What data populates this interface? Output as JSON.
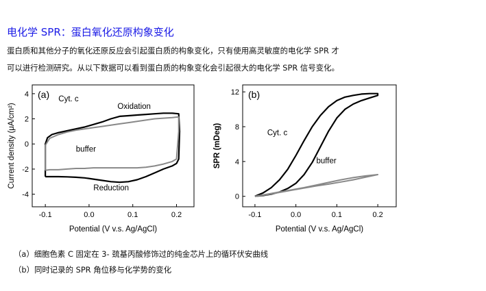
{
  "page": {
    "title": "电化学 SPR：蛋白氧化还原构象变化",
    "paragraph_line1": "蛋白质和其他分子的氧化还原反应会引起蛋白质的构象变化，只有使用高灵敏度的电化学 SPR 才",
    "paragraph_line2": "可以进行检测研究。从以下数据可以看到蛋白质的构象变化会引起很大的电化学 SPR 信号变化。",
    "caption_a": "（a）细胞色素 C 固定在 3- 巯基丙酸修饰过的纯金芯片上的循环伏安曲线",
    "caption_b": "（b）同时记录的 SPR 角位移与化学势的变化"
  },
  "chart_data": [
    {
      "type": "line",
      "panel_label": "(a)",
      "xlabel": "Potential (V v.s. Ag/AgCl)",
      "ylabel": "Current density (μA/cm²)",
      "xlim": [
        -0.13,
        0.24
      ],
      "ylim": [
        -5,
        4.7
      ],
      "xticks": [
        -0.1,
        0.0,
        0.1,
        0.2
      ],
      "xtick_labels": [
        "-0.1",
        "0.0",
        "0.1",
        "0.2"
      ],
      "yticks": [
        -4,
        -2,
        0,
        2,
        4
      ],
      "ytick_labels": [
        "-4",
        "-2",
        "0",
        "2",
        "4"
      ],
      "grid": false,
      "annotations": [
        {
          "text": "Cyt. c",
          "x": -0.07,
          "y": 3.4
        },
        {
          "text": "Oxidation",
          "x": 0.065,
          "y": 2.8
        },
        {
          "text": "buffer",
          "x": -0.03,
          "y": -0.6
        },
        {
          "text": "Reduction",
          "x": 0.01,
          "y": -3.7
        }
      ],
      "series": [
        {
          "color": "#000000",
          "x": [
            -0.1,
            -0.1,
            -0.095,
            -0.085,
            -0.07,
            -0.05,
            -0.03,
            -0.01,
            0.01,
            0.03,
            0.05,
            0.07,
            0.09,
            0.11,
            0.13,
            0.15,
            0.17,
            0.19,
            0.205,
            0.207,
            0.205,
            0.2,
            0.19,
            0.17,
            0.15,
            0.13,
            0.11,
            0.09,
            0.07,
            0.05,
            0.03,
            0.01,
            -0.01,
            -0.03,
            -0.05,
            -0.07,
            -0.09,
            -0.1
          ],
          "y": [
            -2.6,
            0.0,
            0.5,
            0.75,
            0.9,
            1.05,
            1.2,
            1.35,
            1.55,
            1.75,
            2.0,
            2.2,
            2.25,
            2.3,
            2.35,
            2.4,
            2.45,
            2.45,
            2.4,
            1.0,
            -1.2,
            -1.55,
            -1.75,
            -2.0,
            -2.3,
            -2.6,
            -2.85,
            -3.0,
            -3.05,
            -3.0,
            -2.9,
            -2.8,
            -2.7,
            -2.65,
            -2.62,
            -2.6,
            -2.6,
            -2.6
          ]
        },
        {
          "color": "#888888",
          "x": [
            -0.1,
            -0.1,
            -0.09,
            -0.07,
            -0.05,
            -0.03,
            -0.01,
            0.01,
            0.03,
            0.05,
            0.07,
            0.09,
            0.11,
            0.13,
            0.15,
            0.17,
            0.19,
            0.205,
            0.205,
            0.2,
            0.19,
            0.17,
            0.15,
            0.13,
            0.11,
            0.09,
            0.07,
            0.05,
            0.03,
            0.01,
            -0.01,
            -0.03,
            -0.05,
            -0.07,
            -0.09,
            -0.1
          ],
          "y": [
            -2.1,
            -0.1,
            0.45,
            0.75,
            0.95,
            1.1,
            1.2,
            1.3,
            1.4,
            1.5,
            1.6,
            1.7,
            1.8,
            1.9,
            2.0,
            2.05,
            2.1,
            2.15,
            1.0,
            -1.2,
            -1.4,
            -1.6,
            -1.75,
            -1.85,
            -1.9,
            -1.9,
            -1.9,
            -1.9,
            -1.9,
            -1.9,
            -1.95,
            -1.95,
            -2.0,
            -2.05,
            -2.05,
            -2.1
          ]
        }
      ]
    },
    {
      "type": "line",
      "panel_label": "(b)",
      "xlabel": "Potential (V v.s. Ag/AgCl)",
      "ylabel": "SPR (mDeg)",
      "xlim": [
        -0.13,
        0.245
      ],
      "ylim": [
        -1.2,
        12.8
      ],
      "xticks": [
        -0.1,
        0.0,
        0.1,
        0.2
      ],
      "xtick_labels": [
        "-0.1",
        "0.0",
        "0.1",
        "0.2"
      ],
      "yticks": [
        0,
        4,
        8,
        12
      ],
      "ytick_labels": [
        "0",
        "4",
        "8",
        "12"
      ],
      "grid": false,
      "annotations": [
        {
          "text": "Cyt. c",
          "x": -0.07,
          "y": 7.0
        },
        {
          "text": "buffer",
          "x": 0.05,
          "y": 3.8
        }
      ],
      "series": [
        {
          "color": "#000000",
          "x": [
            -0.1,
            -0.08,
            -0.06,
            -0.04,
            -0.02,
            0.0,
            0.02,
            0.04,
            0.06,
            0.08,
            0.1,
            0.12,
            0.14,
            0.16,
            0.18,
            0.2,
            0.2,
            0.18,
            0.16,
            0.14,
            0.12,
            0.1,
            0.08,
            0.06,
            0.04,
            0.02,
            0.0,
            -0.02,
            -0.04,
            -0.06,
            -0.08,
            -0.1
          ],
          "y": [
            0.0,
            0.4,
            1.0,
            1.9,
            3.1,
            4.7,
            6.4,
            8.0,
            9.3,
            10.3,
            11.0,
            11.4,
            11.6,
            11.75,
            11.8,
            11.8,
            11.6,
            11.3,
            11.0,
            10.6,
            10.0,
            9.0,
            7.5,
            5.7,
            3.9,
            2.5,
            1.5,
            0.9,
            0.5,
            0.25,
            0.1,
            0.0
          ]
        },
        {
          "color": "#888888",
          "x": [
            -0.1,
            -0.07,
            -0.04,
            -0.01,
            0.02,
            0.05,
            0.08,
            0.11,
            0.14,
            0.17,
            0.2,
            0.2,
            0.17,
            0.14,
            0.11,
            0.08,
            0.05,
            0.02,
            -0.01,
            -0.04,
            -0.07,
            -0.1
          ],
          "y": [
            0.0,
            0.25,
            0.5,
            0.75,
            1.0,
            1.3,
            1.6,
            1.9,
            2.15,
            2.35,
            2.5,
            2.5,
            2.2,
            1.9,
            1.65,
            1.4,
            1.2,
            0.95,
            0.7,
            0.45,
            0.2,
            0.0
          ]
        }
      ]
    }
  ]
}
